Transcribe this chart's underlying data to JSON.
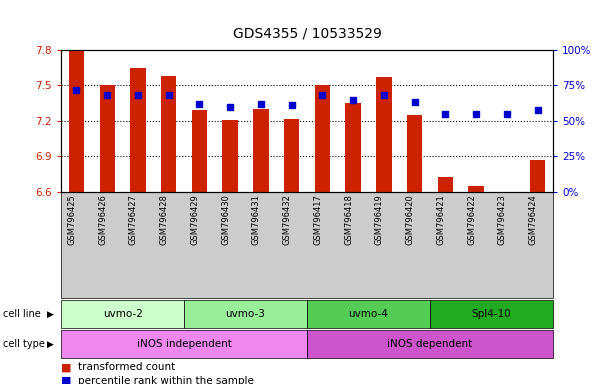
{
  "title": "GDS4355 / 10533529",
  "samples": [
    "GSM796425",
    "GSM796426",
    "GSM796427",
    "GSM796428",
    "GSM796429",
    "GSM796430",
    "GSM796431",
    "GSM796432",
    "GSM796417",
    "GSM796418",
    "GSM796419",
    "GSM796420",
    "GSM796421",
    "GSM796422",
    "GSM796423",
    "GSM796424"
  ],
  "bar_values": [
    7.79,
    7.5,
    7.65,
    7.58,
    7.29,
    7.21,
    7.3,
    7.22,
    7.5,
    7.35,
    7.57,
    7.25,
    6.73,
    6.65,
    6.6,
    6.87
  ],
  "dot_values": [
    72,
    68,
    68,
    68,
    62,
    60,
    62,
    61,
    68,
    65,
    68,
    63,
    55,
    55,
    55,
    58
  ],
  "ylim_left": [
    6.6,
    7.8
  ],
  "ylim_right": [
    0,
    100
  ],
  "yticks_left": [
    6.6,
    6.9,
    7.2,
    7.5,
    7.8
  ],
  "yticks_right": [
    0,
    25,
    50,
    75,
    100
  ],
  "ytick_labels_right": [
    "0%",
    "25%",
    "50%",
    "75%",
    "100%"
  ],
  "bar_color": "#cc2200",
  "dot_color": "#0000cc",
  "bar_bottom": 6.6,
  "cell_line_groups": [
    {
      "label": "uvmo-2",
      "start": 0,
      "end": 3,
      "color": "#ccffcc"
    },
    {
      "label": "uvmo-3",
      "start": 4,
      "end": 7,
      "color": "#99ee99"
    },
    {
      "label": "uvmo-4",
      "start": 8,
      "end": 11,
      "color": "#55cc55"
    },
    {
      "label": "Spl4-10",
      "start": 12,
      "end": 15,
      "color": "#22aa22"
    }
  ],
  "cell_type_groups": [
    {
      "label": "iNOS independent",
      "start": 0,
      "end": 7,
      "color": "#ee88ee"
    },
    {
      "label": "iNOS dependent",
      "start": 8,
      "end": 15,
      "color": "#cc55cc"
    }
  ],
  "xtick_bg_color": "#cccccc",
  "grid_color": "#000000",
  "background_color": "#ffffff",
  "title_fontsize": 10,
  "tick_fontsize": 7.5,
  "label_fontsize": 8
}
